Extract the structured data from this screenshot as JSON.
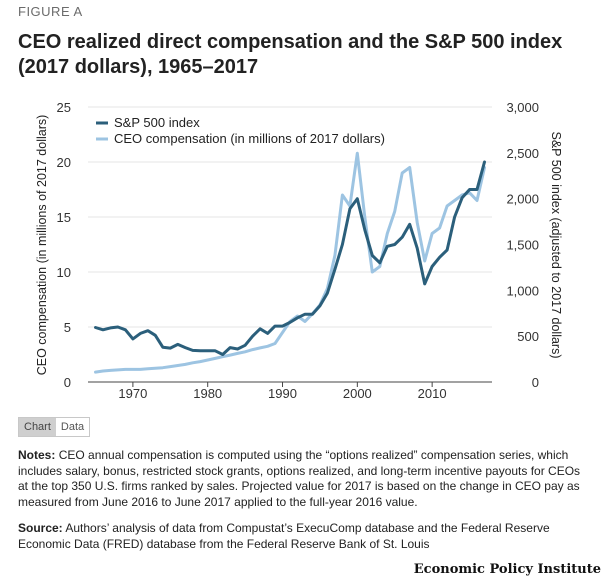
{
  "header": {
    "figure_label": "FIGURE A",
    "title": "CEO realized direct compensation and the S&P 500 index (2017 dollars), 1965–2017"
  },
  "tabs": {
    "chart": "Chart",
    "data": "Data"
  },
  "notes": {
    "label": "Notes:",
    "text": "CEO annual compensation is computed using the “options realized” compensation series, which includes salary, bonus, restricted stock grants, options realized, and long-term incentive payouts for CEOs at the top 350 U.S. firms ranked by sales. Projected value for 2017 is based on the change in CEO pay as measured from June 2016 to June 2017 applied to the full-year 2016 value."
  },
  "source": {
    "label": "Source:",
    "text": "Authors’ analysis of data from Compustat’s ExecuComp database and the Federal Reserve Economic Data (FRED) database from the Federal Reserve Bank of St. Louis"
  },
  "brand": "Economic Policy Institute",
  "colors": {
    "sp500": "#2b5f7b",
    "ceo": "#9dc4e2",
    "axis": "#444444",
    "grid": "#e4e4e4"
  },
  "chart_data": {
    "type": "line",
    "title": "CEO realized direct compensation and the S&P 500 index (2017 dollars), 1965–2017",
    "xlabel": "",
    "ylabel_left": "CEO compensation (in millions of 2017 dollars)",
    "ylabel_right": "S&P 500 index (adjusted to 2017 dollars)",
    "xlim": [
      1964,
      2018
    ],
    "ylim_left": [
      0,
      25
    ],
    "ylim_right": [
      0,
      3000
    ],
    "x_ticks": [
      1970,
      1980,
      1990,
      2000,
      2010
    ],
    "y_ticks_left": [
      "0",
      "5",
      "10",
      "15",
      "20",
      "25"
    ],
    "y_ticks_right": [
      "0",
      "500",
      "1,000",
      "1,500",
      "2,000",
      "2,500",
      "3,000"
    ],
    "legend_position": "top-left",
    "x": [
      1965,
      1966,
      1967,
      1968,
      1969,
      1970,
      1971,
      1972,
      1973,
      1974,
      1975,
      1976,
      1977,
      1978,
      1979,
      1980,
      1981,
      1982,
      1983,
      1984,
      1985,
      1986,
      1987,
      1988,
      1989,
      1990,
      1991,
      1992,
      1993,
      1994,
      1995,
      1996,
      1997,
      1998,
      1999,
      2000,
      2001,
      2002,
      2003,
      2004,
      2005,
      2006,
      2007,
      2008,
      2009,
      2010,
      2011,
      2012,
      2013,
      2014,
      2015,
      2016,
      2017
    ],
    "series": [
      {
        "name": "S&P 500 index",
        "axis": "right",
        "values": [
          595,
          570,
          590,
          600,
          570,
          470,
          530,
          560,
          510,
          380,
          370,
          410,
          375,
          345,
          340,
          340,
          340,
          300,
          375,
          360,
          400,
          500,
          580,
          530,
          610,
          610,
          650,
          700,
          740,
          740,
          830,
          970,
          1230,
          1500,
          1890,
          2000,
          1660,
          1380,
          1300,
          1480,
          1500,
          1580,
          1720,
          1460,
          1070,
          1260,
          1360,
          1440,
          1800,
          2010,
          2100,
          2100,
          2400
        ],
        "color": "#2b5f7b"
      },
      {
        "name": "CEO compensation (in millions of 2017 dollars)",
        "axis": "left",
        "values": [
          0.9,
          1.0,
          1.05,
          1.1,
          1.15,
          1.15,
          1.15,
          1.2,
          1.25,
          1.3,
          1.4,
          1.5,
          1.6,
          1.75,
          1.85,
          2.0,
          2.15,
          2.3,
          2.45,
          2.6,
          2.75,
          2.95,
          3.1,
          3.25,
          3.5,
          4.5,
          5.5,
          6.0,
          5.5,
          6.2,
          7.0,
          8.5,
          11.5,
          17.0,
          16.0,
          20.8,
          15.0,
          10.0,
          10.5,
          13.5,
          15.5,
          19.0,
          19.5,
          14.5,
          11.0,
          13.5,
          14.0,
          16.0,
          16.5,
          17.0,
          17.2,
          16.5,
          19.5
        ],
        "color": "#9dc4e2"
      }
    ]
  }
}
